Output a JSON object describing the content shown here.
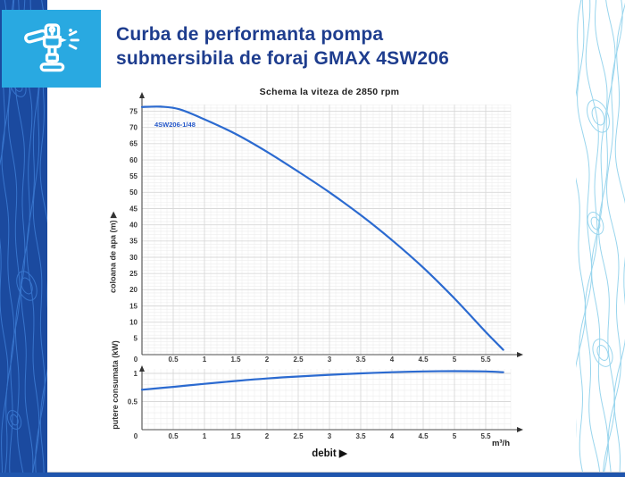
{
  "header": {
    "title_line1": "Curba de performanta pompa",
    "title_line2": "submersibila de foraj GMAX 4SW206",
    "icon": "sprinkler-icon"
  },
  "colors": {
    "title_blue": "#1e3d8e",
    "icon_box_blue": "#29a9e1",
    "strip_blue": "#1b4a9f",
    "strip_contour_blue": "#3b79d1",
    "right_contour_blue": "#8ed1ec",
    "bottom_bar_blue": "#1f55ad",
    "curve_blue": "#2b6ad0",
    "series_label_blue": "#2457c9",
    "grid_minor": "#ededed",
    "grid_major": "#d9d9d9",
    "axis_gray": "#4d4d4d"
  },
  "chart_data": [
    {
      "id": "head-flow-curve",
      "type": "line",
      "title": "Schema la viteza de 2850 rpm",
      "series_label": "4SW206-1/48",
      "xlabel": "",
      "ylabel": "coloana de apa (m) ▶",
      "x_ticks": [
        0,
        0.5,
        1,
        1.5,
        2,
        2.5,
        3,
        3.5,
        4,
        4.5,
        5,
        5.5
      ],
      "y_ticks": [
        0,
        5,
        10,
        15,
        20,
        25,
        30,
        35,
        40,
        45,
        50,
        55,
        60,
        65,
        70,
        75
      ],
      "xlim": [
        0,
        5.9
      ],
      "ylim": [
        0,
        78
      ],
      "grid": true,
      "legend_position": "none",
      "x": [
        0,
        0.3,
        0.6,
        1,
        1.5,
        2,
        2.5,
        3,
        3.5,
        4,
        4.5,
        5,
        5.5,
        5.78
      ],
      "y": [
        76.3,
        76.4,
        75.6,
        72.5,
        68,
        62.5,
        56.4,
        50,
        43,
        35.3,
        26.8,
        17.3,
        7,
        1.5
      ]
    },
    {
      "id": "power-curve",
      "type": "line",
      "title": "",
      "series_label": "",
      "xlabel": "debit ▶",
      "x_unit": "m³/h",
      "ylabel": "putere consumata (kW)",
      "x_ticks": [
        0,
        0.5,
        1,
        1.5,
        2,
        2.5,
        3,
        3.5,
        4,
        4.5,
        5,
        5.5
      ],
      "y_ticks": [
        0,
        0.5,
        1
      ],
      "xlim": [
        0,
        5.9
      ],
      "ylim": [
        0,
        1.1
      ],
      "grid": true,
      "legend_position": "none",
      "x": [
        0,
        0.5,
        1,
        1.5,
        2,
        2.5,
        3,
        3.5,
        4,
        4.5,
        5,
        5.5,
        5.78
      ],
      "y": [
        0.71,
        0.76,
        0.815,
        0.865,
        0.91,
        0.945,
        0.975,
        1.0,
        1.02,
        1.035,
        1.04,
        1.035,
        1.02
      ]
    }
  ]
}
